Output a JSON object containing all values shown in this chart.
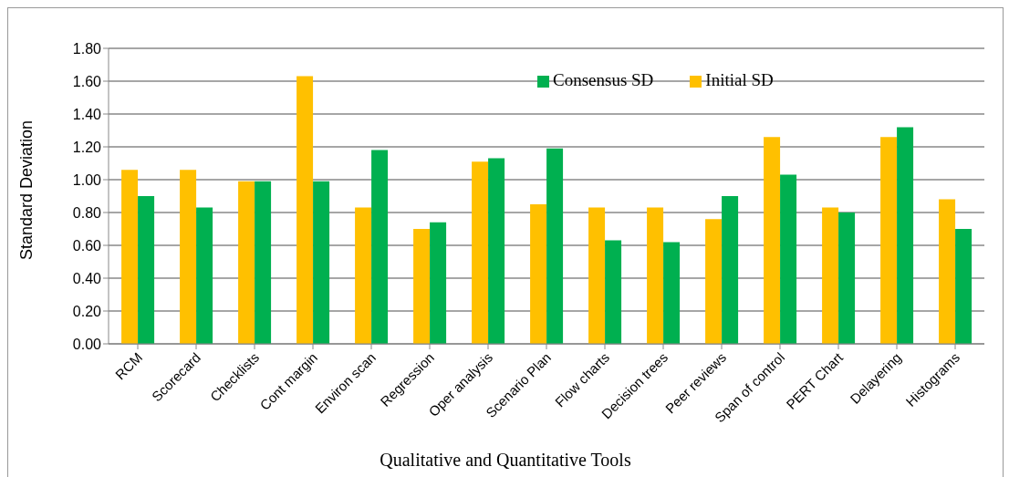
{
  "chart_data": {
    "type": "bar",
    "xlabel": "Qualitative and Quantitative Tools",
    "ylabel": "Standard Deviation",
    "categories": [
      "RCM",
      "Scorecard",
      "Checklists",
      "Cont margin",
      "Environ scan",
      "Regression",
      "Oper analysis",
      "Scenario Plan",
      "Flow charts",
      "Decision trees",
      "Peer reviews",
      "Span of control",
      "PERT Chart",
      "Delayering",
      "Histograms"
    ],
    "series": [
      {
        "name": "Initial SD",
        "color": "#ffc000",
        "values": [
          1.06,
          1.06,
          0.99,
          1.63,
          0.83,
          0.7,
          1.11,
          0.85,
          0.83,
          0.83,
          0.76,
          1.26,
          0.83,
          1.26,
          0.88
        ]
      },
      {
        "name": "Consensus SD",
        "color": "#00b050",
        "values": [
          0.9,
          0.83,
          0.99,
          0.99,
          1.18,
          0.74,
          1.13,
          1.19,
          0.63,
          0.62,
          0.9,
          1.03,
          0.8,
          1.32,
          0.7
        ]
      }
    ],
    "ylim": [
      0,
      1.8
    ],
    "yticks": [
      {
        "value": 0,
        "label": "0.00"
      },
      {
        "value": 0.2,
        "label": "0.20"
      },
      {
        "value": 0.4,
        "label": "0.40"
      },
      {
        "value": 0.6,
        "label": "0.60"
      },
      {
        "value": 0.8,
        "label": "0.80"
      },
      {
        "value": 1.0,
        "label": "1.00"
      },
      {
        "value": 1.2,
        "label": "1.20"
      },
      {
        "value": 1.4,
        "label": "1.40"
      },
      {
        "value": 1.6,
        "label": "1.60"
      },
      {
        "value": 1.8,
        "label": "1.80"
      }
    ],
    "grid": "y",
    "legend": "top"
  }
}
